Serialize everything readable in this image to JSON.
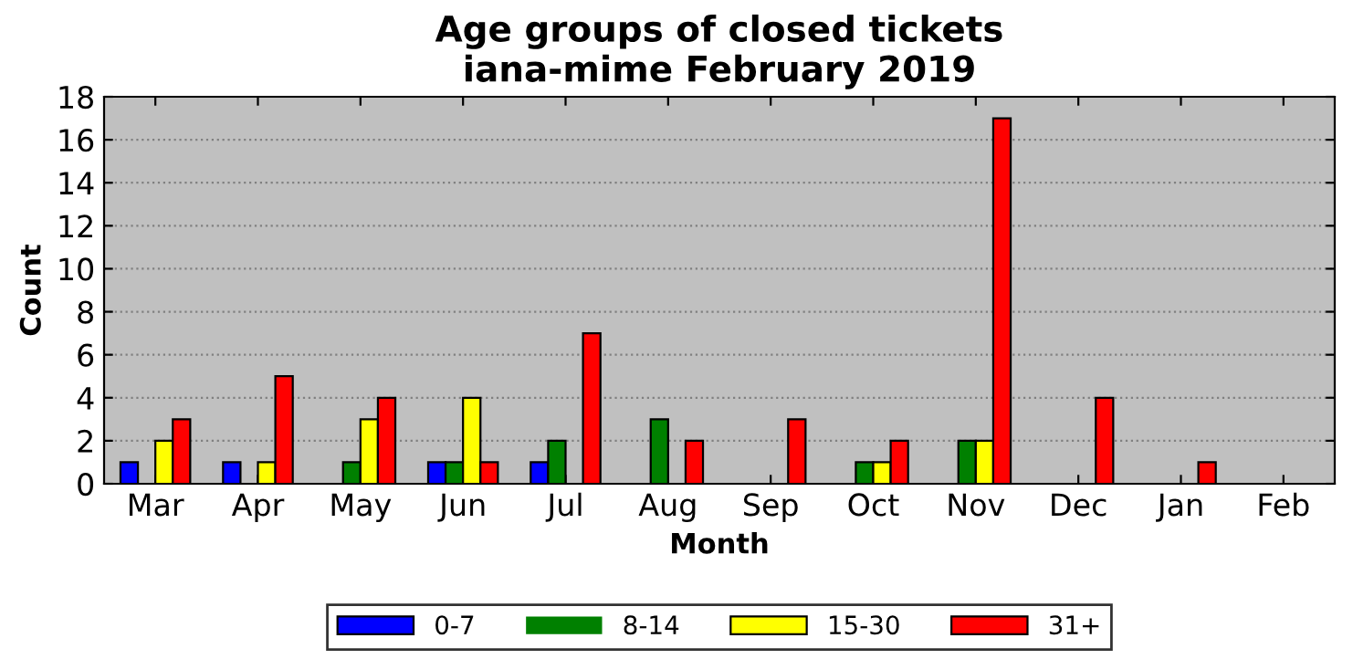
{
  "chart_data": {
    "type": "bar",
    "title": "Age groups of closed tickets\niana-mime February 2019",
    "xlabel": "Month",
    "ylabel": "Count",
    "categories": [
      "Mar",
      "Apr",
      "May",
      "Jun",
      "Jul",
      "Aug",
      "Sep",
      "Oct",
      "Nov",
      "Dec",
      "Jan",
      "Feb"
    ],
    "series": [
      {
        "name": "0-7",
        "color": "#0000ff",
        "values": [
          1,
          1,
          0,
          1,
          1,
          0,
          0,
          0,
          0,
          0,
          0,
          0
        ]
      },
      {
        "name": "8-14",
        "color": "#008000",
        "values": [
          0,
          0,
          1,
          1,
          2,
          3,
          0,
          1,
          2,
          0,
          0,
          0
        ]
      },
      {
        "name": "15-30",
        "color": "#ffff00",
        "values": [
          2,
          1,
          3,
          4,
          0,
          0,
          0,
          1,
          2,
          0,
          0,
          0
        ]
      },
      {
        "name": "31+",
        "color": "#ff0000",
        "values": [
          3,
          5,
          4,
          1,
          7,
          2,
          3,
          2,
          17,
          4,
          1,
          0
        ]
      }
    ],
    "ylim": [
      0,
      18
    ],
    "yticks": [
      0,
      2,
      4,
      6,
      8,
      10,
      12,
      14,
      16,
      18
    ],
    "grid": "y",
    "legend": "bottom"
  }
}
